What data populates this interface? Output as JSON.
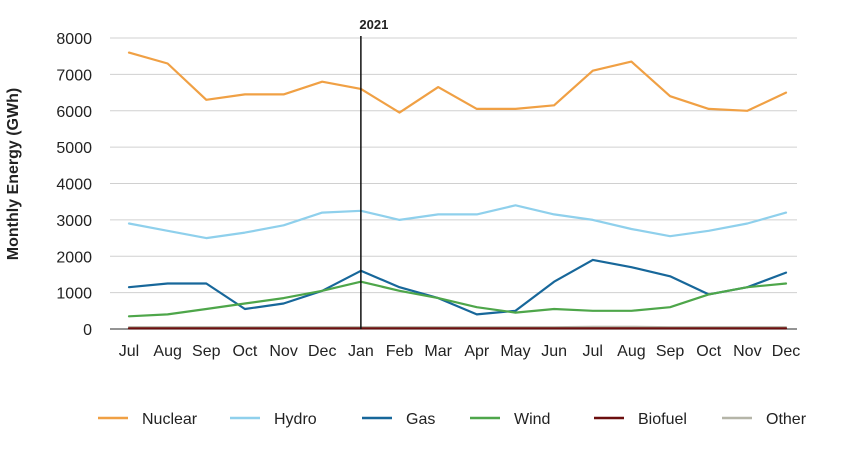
{
  "chart_data": {
    "type": "line",
    "ylabel": "Monthly Energy (GWh)",
    "xlabel": "",
    "ylim": [
      0,
      8000
    ],
    "yticks": [
      "0",
      "1000",
      "2000",
      "3000",
      "4000",
      "5000",
      "6000",
      "7000",
      "8000"
    ],
    "categories": [
      "Jul",
      "Aug",
      "Sep",
      "Oct",
      "Nov",
      "Dec",
      "Jan",
      "Feb",
      "Mar",
      "Apr",
      "May",
      "Jun",
      "Jul",
      "Aug",
      "Sep",
      "Oct",
      "Nov",
      "Dec"
    ],
    "grid": "horizontal",
    "legend_position": "bottom",
    "annotation": {
      "label": "2021",
      "at_category_index": 6
    },
    "series": [
      {
        "name": "Nuclear",
        "color": "#F0A044",
        "values": [
          7600,
          7300,
          6300,
          6450,
          6450,
          6800,
          6600,
          5950,
          6650,
          6050,
          6050,
          6150,
          7100,
          7350,
          6400,
          6050,
          6000,
          6500
        ]
      },
      {
        "name": "Hydro",
        "color": "#8FD0EC",
        "values": [
          2900,
          2700,
          2500,
          2650,
          2850,
          3200,
          3250,
          3000,
          3150,
          3150,
          3400,
          3150,
          3000,
          2750,
          2550,
          2700,
          2900,
          3200
        ]
      },
      {
        "name": "Gas",
        "color": "#17679A",
        "values": [
          1150,
          1250,
          1250,
          550,
          700,
          1050,
          1600,
          1150,
          850,
          400,
          500,
          1300,
          1900,
          1700,
          1450,
          950,
          1150,
          1550
        ]
      },
      {
        "name": "Wind",
        "color": "#4EA64A",
        "values": [
          350,
          400,
          550,
          700,
          850,
          1050,
          1300,
          1050,
          850,
          600,
          450,
          550,
          500,
          500,
          600,
          950,
          1150,
          1250
        ]
      },
      {
        "name": "Biofuel",
        "color": "#6B0E0E",
        "values": [
          20,
          20,
          20,
          20,
          20,
          20,
          20,
          20,
          20,
          20,
          20,
          20,
          20,
          20,
          20,
          20,
          20,
          20
        ]
      },
      {
        "name": "Other",
        "color": "#B5B5A8",
        "values": [
          50,
          50,
          50,
          50,
          50,
          50,
          50,
          50,
          50,
          50,
          50,
          50,
          60,
          60,
          50,
          50,
          50,
          50
        ]
      }
    ]
  }
}
